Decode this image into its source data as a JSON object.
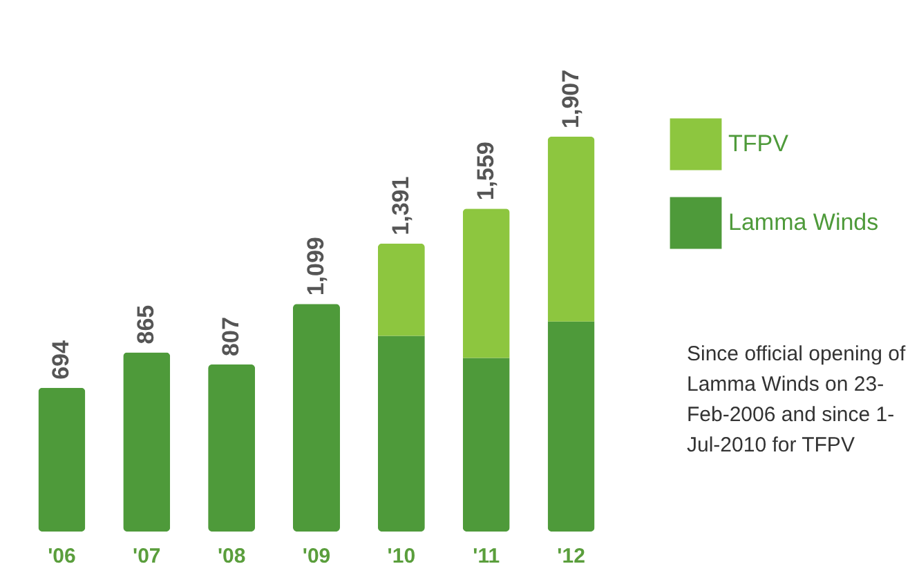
{
  "chart_data": {
    "type": "bar",
    "stacked": true,
    "categories": [
      "'06",
      "'07",
      "'08",
      "'09",
      "'10",
      "'11",
      "'12"
    ],
    "series": [
      {
        "name": "Lamma Winds",
        "color": "#4e9a3a",
        "values": [
          694,
          865,
          807,
          1099,
          945,
          838,
          1014
        ],
        "value_labels": [
          "694",
          "865",
          "807",
          "1,099",
          null,
          null,
          null
        ]
      },
      {
        "name": "TFPV",
        "color": "#8dc63f",
        "values": [
          null,
          null,
          null,
          null,
          446,
          721,
          893
        ]
      }
    ],
    "totals": [
      null,
      null,
      null,
      null,
      "1,391",
      "1,559",
      "1,907"
    ],
    "legend": "right",
    "tick_labels": "x",
    "annotations": [
      "Since official opening of Lamma Winds on 23-Feb-2006 and since 1-Jul-2010 for TFPV"
    ]
  }
}
